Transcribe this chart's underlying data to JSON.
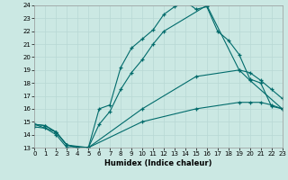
{
  "xlabel": "Humidex (Indice chaleur)",
  "bg_color": "#cbe8e3",
  "line_color": "#006b6b",
  "grid_color": "#b8d8d4",
  "xlim": [
    0,
    23
  ],
  "ylim": [
    13,
    24
  ],
  "xticks": [
    0,
    1,
    2,
    3,
    4,
    5,
    6,
    7,
    8,
    9,
    10,
    11,
    12,
    13,
    14,
    15,
    16,
    17,
    18,
    19,
    20,
    21,
    22,
    23
  ],
  "yticks": [
    13,
    14,
    15,
    16,
    17,
    18,
    19,
    20,
    21,
    22,
    23,
    24
  ],
  "lines": [
    {
      "x": [
        0,
        1,
        2,
        3,
        4,
        5,
        6,
        7,
        8,
        9,
        10,
        11,
        12,
        13,
        14,
        15,
        16,
        17,
        18,
        19,
        20,
        21,
        22,
        23
      ],
      "y": [
        14.8,
        14.7,
        14.2,
        13.2,
        13.0,
        13.0,
        16.0,
        16.3,
        19.2,
        20.7,
        21.4,
        22.1,
        23.3,
        23.9,
        24.3,
        23.7,
        23.9,
        22.0,
        21.3,
        20.2,
        18.3,
        18.0,
        16.2,
        16.0
      ],
      "markers_at": [
        0,
        1,
        2,
        3,
        4,
        5,
        6,
        7,
        8,
        9,
        10,
        11,
        12,
        13,
        14,
        15,
        16,
        17,
        18,
        19,
        20,
        21,
        22,
        23
      ]
    },
    {
      "x": [
        0,
        2,
        3,
        4,
        5,
        6,
        7,
        8,
        9,
        10,
        11,
        12,
        16,
        19,
        20,
        23
      ],
      "y": [
        14.8,
        14.2,
        13.2,
        13.0,
        13.0,
        14.8,
        15.8,
        17.5,
        18.8,
        19.8,
        21.0,
        22.0,
        24.0,
        19.0,
        18.2,
        16.0
      ],
      "markers_at": [
        0,
        2,
        3,
        4,
        5,
        6,
        7,
        8,
        9,
        10,
        11,
        12,
        16,
        19,
        20,
        23
      ]
    },
    {
      "x": [
        0,
        1,
        2,
        3,
        5,
        10,
        15,
        19,
        20,
        21,
        22,
        23
      ],
      "y": [
        14.8,
        14.7,
        14.2,
        13.2,
        13.0,
        16.0,
        18.5,
        19.0,
        18.8,
        18.2,
        17.5,
        16.8
      ],
      "markers_at": [
        0,
        1,
        2,
        3,
        5,
        10,
        15,
        19,
        20,
        21,
        22,
        23
      ]
    },
    {
      "x": [
        0,
        1,
        2,
        3,
        5,
        10,
        15,
        19,
        20,
        21,
        22,
        23
      ],
      "y": [
        14.6,
        14.5,
        14.0,
        13.0,
        13.0,
        15.0,
        16.0,
        16.5,
        16.5,
        16.5,
        16.3,
        16.0
      ],
      "markers_at": [
        0,
        1,
        2,
        3,
        5,
        10,
        15,
        19,
        20,
        21,
        22,
        23
      ]
    }
  ]
}
